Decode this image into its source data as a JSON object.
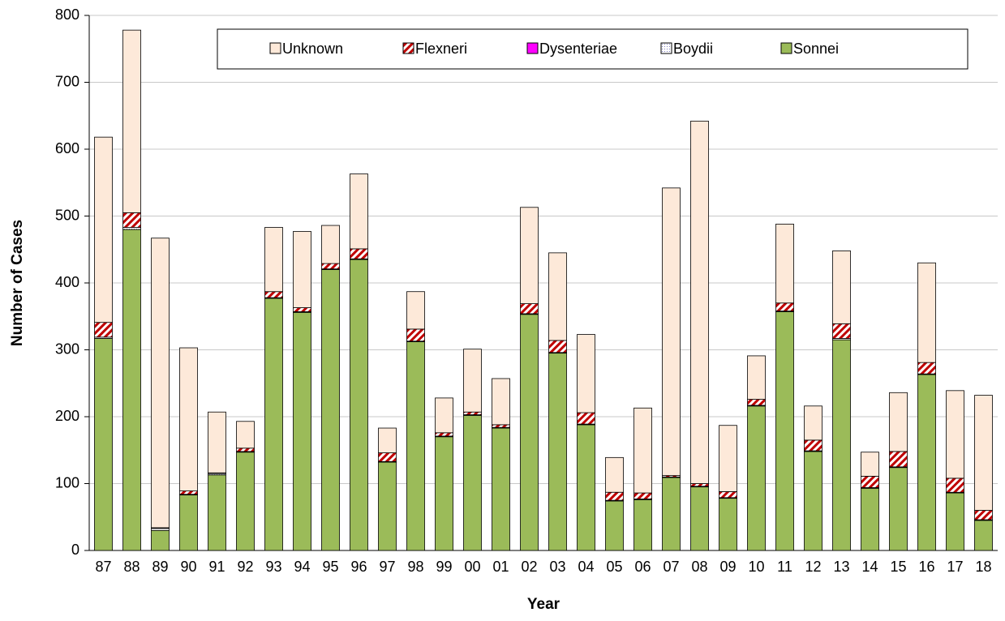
{
  "chart_data": {
    "type": "stacked_bar",
    "x_label": "Year",
    "y_label": "Number of Cases",
    "categories": [
      "87",
      "88",
      "89",
      "90",
      "91",
      "92",
      "93",
      "94",
      "95",
      "96",
      "97",
      "98",
      "99",
      "00",
      "01",
      "02",
      "03",
      "04",
      "05",
      "06",
      "07",
      "08",
      "09",
      "10",
      "11",
      "12",
      "13",
      "14",
      "15",
      "16",
      "17",
      "18"
    ],
    "series": [
      {
        "name": "Sonnei",
        "color": "#9bbb59",
        "values": [
          317,
          480,
          30,
          83,
          113,
          147,
          377,
          356,
          420,
          435,
          132,
          312,
          170,
          202,
          183,
          353,
          295,
          188,
          74,
          76,
          109,
          95,
          78,
          216,
          357,
          148,
          315,
          93,
          124,
          263,
          86,
          45
        ]
      },
      {
        "name": "Boydii",
        "color": "#7f7fbf",
        "values": [
          2,
          3,
          3,
          1,
          2,
          1,
          1,
          1,
          1,
          1,
          1,
          1,
          1,
          1,
          1,
          1,
          1,
          1,
          1,
          1,
          1,
          1,
          1,
          1,
          1,
          1,
          2,
          1,
          1,
          1,
          1,
          1
        ]
      },
      {
        "name": "Dysenteriae",
        "color": "#ff00ff",
        "values": [
          0,
          0,
          0,
          0,
          0,
          0,
          0,
          0,
          0,
          0,
          0,
          0,
          0,
          0,
          0,
          0,
          0,
          0,
          0,
          0,
          0,
          0,
          0,
          0,
          0,
          0,
          0,
          0,
          0,
          0,
          0,
          0
        ]
      },
      {
        "name": "Flexneri",
        "color": "#c00000",
        "values": [
          22,
          22,
          1,
          5,
          1,
          5,
          9,
          6,
          8,
          15,
          13,
          18,
          5,
          4,
          4,
          15,
          18,
          17,
          12,
          9,
          2,
          4,
          9,
          9,
          12,
          16,
          22,
          17,
          23,
          17,
          21,
          14
        ]
      },
      {
        "name": "Unknown",
        "color": "#fde9d9",
        "values": [
          277,
          273,
          433,
          214,
          91,
          40,
          96,
          114,
          57,
          112,
          37,
          56,
          52,
          94,
          69,
          144,
          131,
          117,
          52,
          127,
          430,
          542,
          99,
          65,
          118,
          51,
          109,
          36,
          88,
          149,
          131,
          172
        ]
      }
    ],
    "ylim": [
      0,
      800
    ],
    "yticks": [
      0,
      100,
      200,
      300,
      400,
      500,
      600,
      700,
      800
    ],
    "grid": true,
    "legend": "top"
  }
}
